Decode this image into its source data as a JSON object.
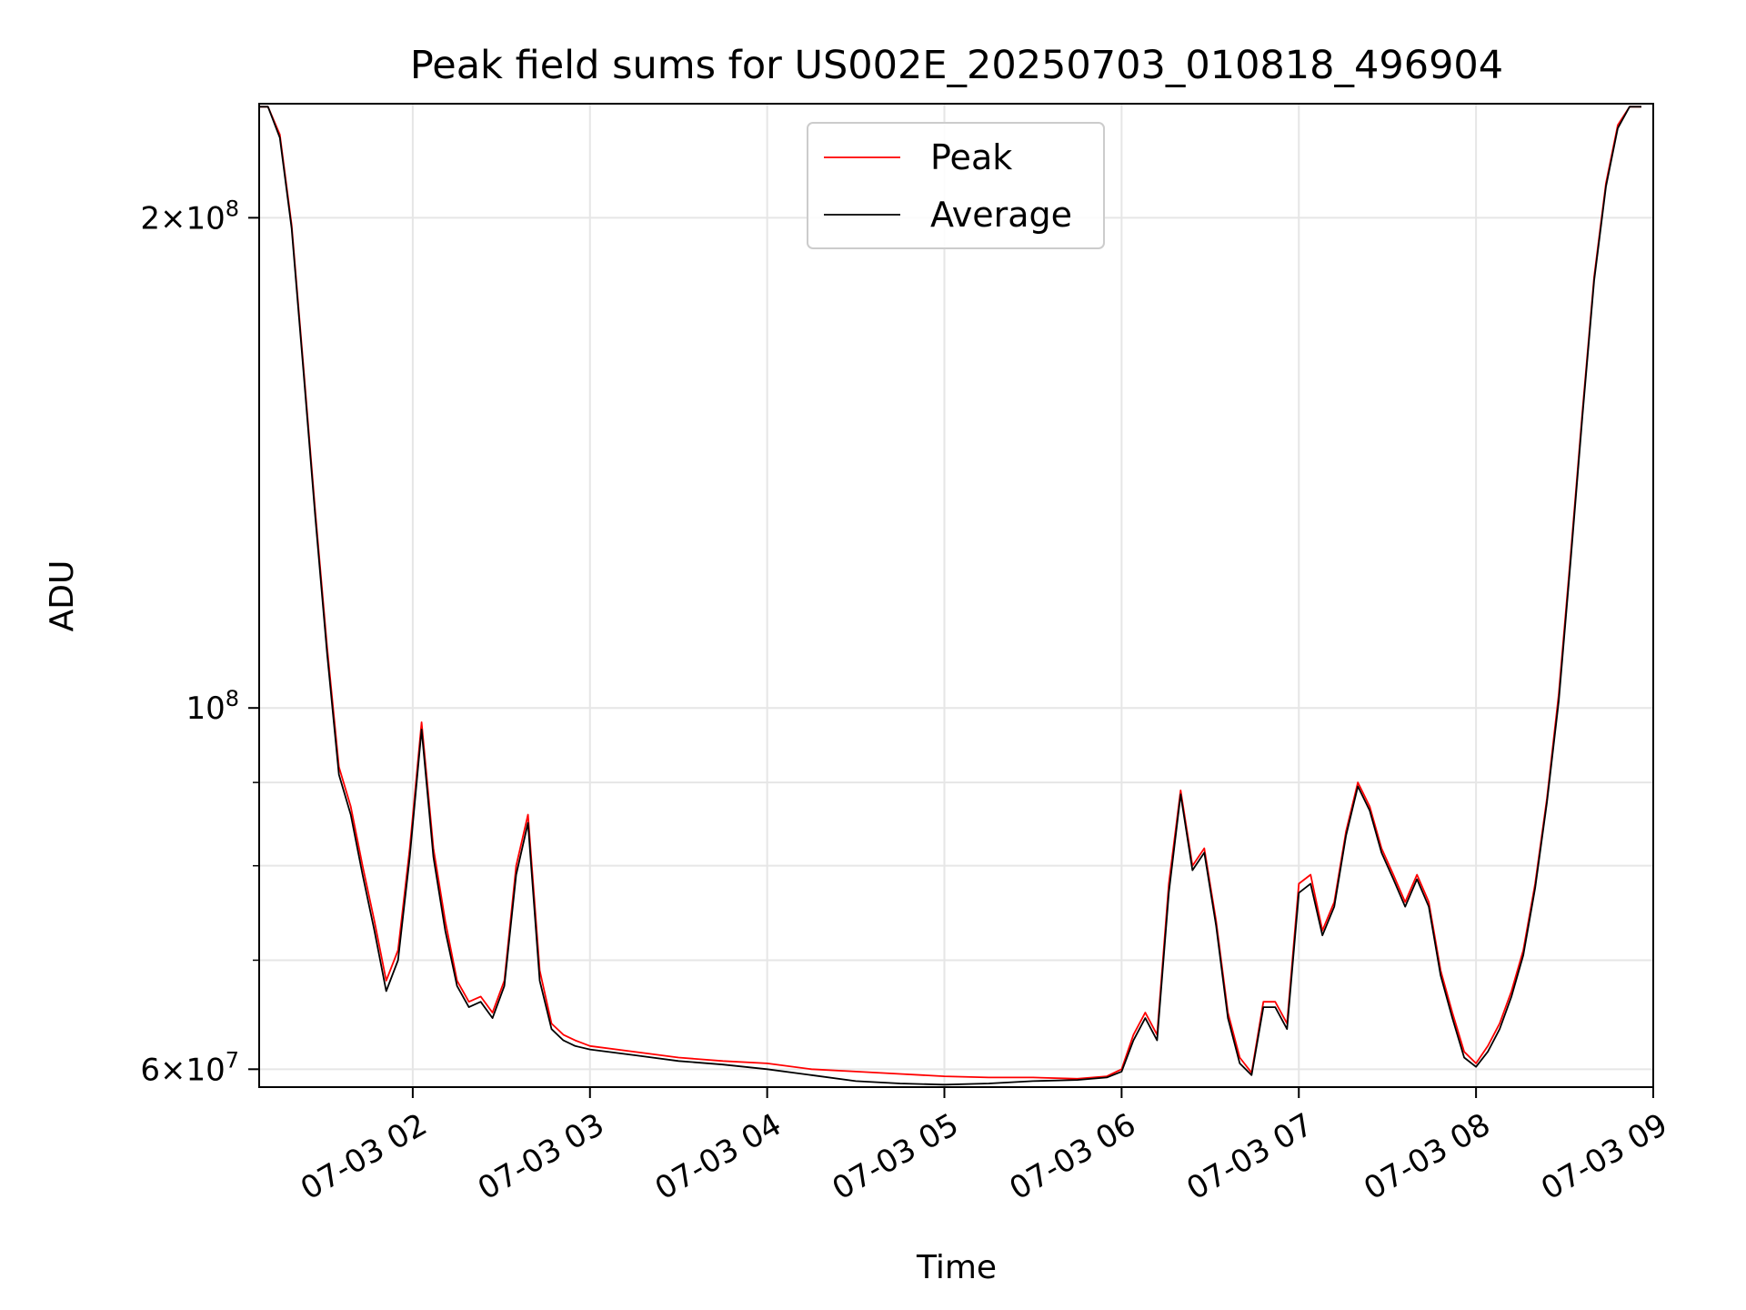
{
  "chart_data": {
    "type": "line",
    "title": "Peak field sums for US002E_20250703_010818_496904",
    "xlabel": "Time",
    "ylabel": "ADU",
    "yscale": "log",
    "grid": true,
    "legend_position": "top-center",
    "xlim": [
      "2025-07-03 01:08",
      "2025-07-03 09:00"
    ],
    "ylim": [
      58500000,
      235000000
    ],
    "x_ticks": [
      {
        "value": "2025-07-03 02:00",
        "label": "07-03 02"
      },
      {
        "value": "2025-07-03 03:00",
        "label": "07-03 03"
      },
      {
        "value": "2025-07-03 04:00",
        "label": "07-03 04"
      },
      {
        "value": "2025-07-03 05:00",
        "label": "07-03 05"
      },
      {
        "value": "2025-07-03 06:00",
        "label": "07-03 06"
      },
      {
        "value": "2025-07-03 07:00",
        "label": "07-03 07"
      },
      {
        "value": "2025-07-03 08:00",
        "label": "07-03 08"
      },
      {
        "value": "2025-07-03 09:00",
        "label": "07-03 09"
      }
    ],
    "y_ticks": [
      {
        "value": 60000000,
        "base": "6",
        "exp": "7"
      },
      {
        "value": 100000000,
        "base": "",
        "exp": "8"
      },
      {
        "value": 200000000,
        "base": "2",
        "exp": "8"
      }
    ],
    "y_minor_ticks": [
      70000000,
      80000000,
      90000000
    ],
    "series": [
      {
        "name": "Peak",
        "color": "#ff0000",
        "x": [
          "2025-07-03 01:08",
          "2025-07-03 01:11",
          "2025-07-03 01:15",
          "2025-07-03 01:19",
          "2025-07-03 01:23",
          "2025-07-03 01:27",
          "2025-07-03 01:31",
          "2025-07-03 01:35",
          "2025-07-03 01:39",
          "2025-07-03 01:43",
          "2025-07-03 01:47",
          "2025-07-03 01:51",
          "2025-07-03 01:55",
          "2025-07-03 01:59",
          "2025-07-03 02:03",
          "2025-07-03 02:07",
          "2025-07-03 02:11",
          "2025-07-03 02:15",
          "2025-07-03 02:19",
          "2025-07-03 02:23",
          "2025-07-03 02:27",
          "2025-07-03 02:31",
          "2025-07-03 02:35",
          "2025-07-03 02:39",
          "2025-07-03 02:43",
          "2025-07-03 02:47",
          "2025-07-03 02:51",
          "2025-07-03 02:55",
          "2025-07-03 03:00",
          "2025-07-03 03:15",
          "2025-07-03 03:30",
          "2025-07-03 03:45",
          "2025-07-03 04:00",
          "2025-07-03 04:15",
          "2025-07-03 04:30",
          "2025-07-03 04:45",
          "2025-07-03 05:00",
          "2025-07-03 05:15",
          "2025-07-03 05:30",
          "2025-07-03 05:45",
          "2025-07-03 05:55",
          "2025-07-03 06:00",
          "2025-07-03 06:04",
          "2025-07-03 06:08",
          "2025-07-03 06:12",
          "2025-07-03 06:16",
          "2025-07-03 06:20",
          "2025-07-03 06:24",
          "2025-07-03 06:28",
          "2025-07-03 06:32",
          "2025-07-03 06:36",
          "2025-07-03 06:40",
          "2025-07-03 06:44",
          "2025-07-03 06:48",
          "2025-07-03 06:52",
          "2025-07-03 06:56",
          "2025-07-03 07:00",
          "2025-07-03 07:04",
          "2025-07-03 07:08",
          "2025-07-03 07:12",
          "2025-07-03 07:16",
          "2025-07-03 07:20",
          "2025-07-03 07:24",
          "2025-07-03 07:28",
          "2025-07-03 07:32",
          "2025-07-03 07:36",
          "2025-07-03 07:40",
          "2025-07-03 07:44",
          "2025-07-03 07:48",
          "2025-07-03 07:52",
          "2025-07-03 07:56",
          "2025-07-03 08:00",
          "2025-07-03 08:04",
          "2025-07-03 08:08",
          "2025-07-03 08:12",
          "2025-07-03 08:16",
          "2025-07-03 08:20",
          "2025-07-03 08:24",
          "2025-07-03 08:28",
          "2025-07-03 08:32",
          "2025-07-03 08:36",
          "2025-07-03 08:40",
          "2025-07-03 08:44",
          "2025-07-03 08:48",
          "2025-07-03 08:52",
          "2025-07-03 08:56"
        ],
        "values": [
          234000000,
          234000000,
          225000000,
          198000000,
          162000000,
          132000000,
          109000000,
          92000000,
          87000000,
          80000000,
          74000000,
          68000000,
          71000000,
          82000000,
          98000000,
          82000000,
          74000000,
          68000000,
          66000000,
          66500000,
          65000000,
          68000000,
          80000000,
          86000000,
          69000000,
          64000000,
          63000000,
          62500000,
          62000000,
          61500000,
          61000000,
          60700000,
          60500000,
          60000000,
          59800000,
          59600000,
          59400000,
          59300000,
          59300000,
          59200000,
          59400000,
          60000000,
          63000000,
          65000000,
          63000000,
          78000000,
          89000000,
          80000000,
          82000000,
          74000000,
          65000000,
          61000000,
          59700000,
          66000000,
          66000000,
          64000000,
          78000000,
          79000000,
          73000000,
          76000000,
          84000000,
          90000000,
          87000000,
          82000000,
          79000000,
          76000000,
          79000000,
          76000000,
          69000000,
          65000000,
          61500000,
          60500000,
          62000000,
          64000000,
          67000000,
          71000000,
          78000000,
          88000000,
          102000000,
          124000000,
          152000000,
          184000000,
          210000000,
          228000000,
          234000000,
          234000000
        ]
      },
      {
        "name": "Average",
        "color": "#000000",
        "x": [
          "2025-07-03 01:08",
          "2025-07-03 01:11",
          "2025-07-03 01:15",
          "2025-07-03 01:19",
          "2025-07-03 01:23",
          "2025-07-03 01:27",
          "2025-07-03 01:31",
          "2025-07-03 01:35",
          "2025-07-03 01:39",
          "2025-07-03 01:43",
          "2025-07-03 01:47",
          "2025-07-03 01:51",
          "2025-07-03 01:55",
          "2025-07-03 01:59",
          "2025-07-03 02:03",
          "2025-07-03 02:07",
          "2025-07-03 02:11",
          "2025-07-03 02:15",
          "2025-07-03 02:19",
          "2025-07-03 02:23",
          "2025-07-03 02:27",
          "2025-07-03 02:31",
          "2025-07-03 02:35",
          "2025-07-03 02:39",
          "2025-07-03 02:43",
          "2025-07-03 02:47",
          "2025-07-03 02:51",
          "2025-07-03 02:55",
          "2025-07-03 03:00",
          "2025-07-03 03:15",
          "2025-07-03 03:30",
          "2025-07-03 03:45",
          "2025-07-03 04:00",
          "2025-07-03 04:15",
          "2025-07-03 04:30",
          "2025-07-03 04:45",
          "2025-07-03 05:00",
          "2025-07-03 05:15",
          "2025-07-03 05:30",
          "2025-07-03 05:45",
          "2025-07-03 05:55",
          "2025-07-03 06:00",
          "2025-07-03 06:04",
          "2025-07-03 06:08",
          "2025-07-03 06:12",
          "2025-07-03 06:16",
          "2025-07-03 06:20",
          "2025-07-03 06:24",
          "2025-07-03 06:28",
          "2025-07-03 06:32",
          "2025-07-03 06:36",
          "2025-07-03 06:40",
          "2025-07-03 06:44",
          "2025-07-03 06:48",
          "2025-07-03 06:52",
          "2025-07-03 06:56",
          "2025-07-03 07:00",
          "2025-07-03 07:04",
          "2025-07-03 07:08",
          "2025-07-03 07:12",
          "2025-07-03 07:16",
          "2025-07-03 07:20",
          "2025-07-03 07:24",
          "2025-07-03 07:28",
          "2025-07-03 07:32",
          "2025-07-03 07:36",
          "2025-07-03 07:40",
          "2025-07-03 07:44",
          "2025-07-03 07:48",
          "2025-07-03 07:52",
          "2025-07-03 07:56",
          "2025-07-03 08:00",
          "2025-07-03 08:04",
          "2025-07-03 08:08",
          "2025-07-03 08:12",
          "2025-07-03 08:16",
          "2025-07-03 08:20",
          "2025-07-03 08:24",
          "2025-07-03 08:28",
          "2025-07-03 08:32",
          "2025-07-03 08:36",
          "2025-07-03 08:40",
          "2025-07-03 08:44",
          "2025-07-03 08:48",
          "2025-07-03 08:52",
          "2025-07-03 08:56"
        ],
        "values": [
          234000000,
          234000000,
          224000000,
          197000000,
          161000000,
          131000000,
          108000000,
          91000000,
          86000000,
          79000000,
          73000000,
          67000000,
          70000000,
          81000000,
          97000000,
          81000000,
          73000000,
          67500000,
          65500000,
          66000000,
          64500000,
          67500000,
          79000000,
          85000000,
          68000000,
          63500000,
          62500000,
          62000000,
          61700000,
          61200000,
          60700000,
          60400000,
          60000000,
          59500000,
          59000000,
          58800000,
          58700000,
          58800000,
          59000000,
          59100000,
          59300000,
          59800000,
          62500000,
          64500000,
          62500000,
          77000000,
          88500000,
          79500000,
          81500000,
          73500000,
          64500000,
          60500000,
          59500000,
          65500000,
          65500000,
          63500000,
          77000000,
          78000000,
          72500000,
          75500000,
          83500000,
          89500000,
          86500000,
          81500000,
          78500000,
          75500000,
          78500000,
          75500000,
          68500000,
          64500000,
          61000000,
          60200000,
          61500000,
          63500000,
          66500000,
          70500000,
          77500000,
          87500000,
          101000000,
          123000000,
          151000000,
          183000000,
          209000000,
          227000000,
          234000000,
          234000000
        ]
      }
    ]
  }
}
